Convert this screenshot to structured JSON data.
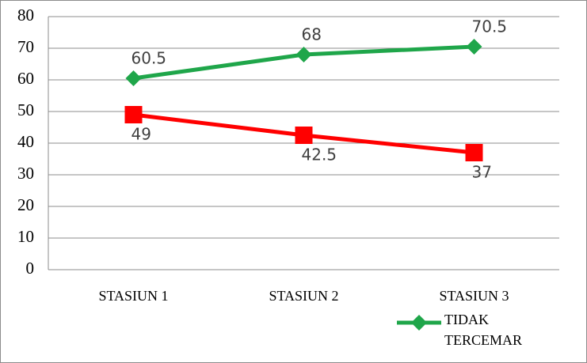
{
  "chart_data": {
    "type": "line",
    "categories": [
      "STASIUN 1",
      "STASIUN 2",
      "STASIUN 3"
    ],
    "series": [
      {
        "name": "TIDAK TERCEMAR",
        "color": "#1fa64a",
        "marker": "diamond",
        "label_position": "above",
        "values": [
          60.5,
          68,
          70.5
        ]
      },
      {
        "color": "#ff0000",
        "marker": "square",
        "label_position": "below",
        "values": [
          49,
          42.5,
          37
        ]
      }
    ],
    "ylim": [
      0,
      80
    ],
    "yticks": [
      0,
      10,
      20,
      30,
      40,
      50,
      60,
      70,
      80
    ],
    "grid": true,
    "legend": "bottom-right"
  }
}
